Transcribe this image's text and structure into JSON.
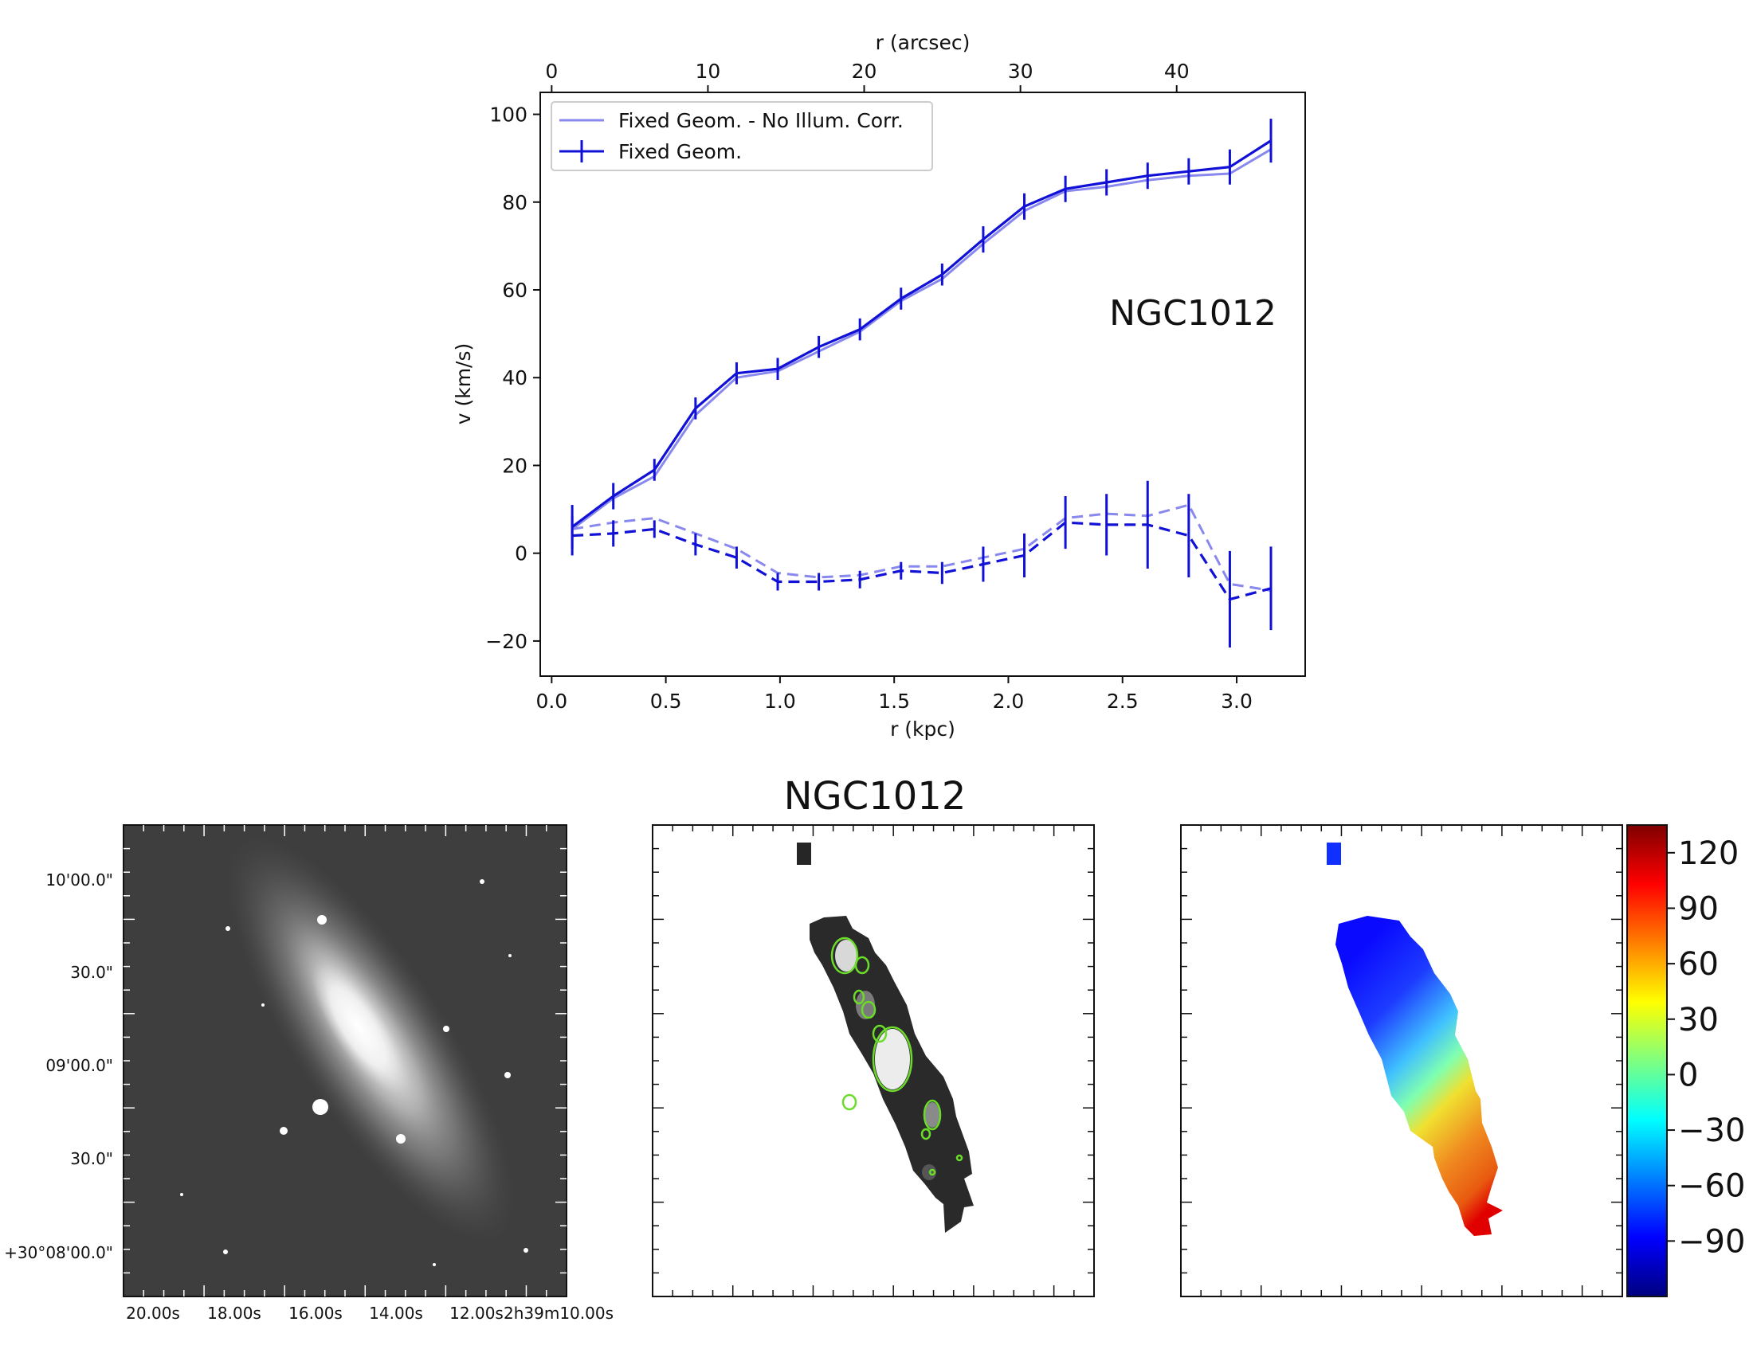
{
  "colors": {
    "fixed_geom": "#1010d6",
    "no_illum": "#8888ee",
    "cbar": [
      "#00007f",
      "#0000ff",
      "#007fff",
      "#00ffff",
      "#7fff7f",
      "#ffff00",
      "#ff7f00",
      "#ff0000",
      "#7f0000"
    ]
  },
  "images": {
    "title": "NGC1012",
    "left_panel": {
      "yticks": [
        "10'00.0\"",
        "30.0\"",
        "09'00.0\"",
        "30.0\"",
        "+30°08'00.0\""
      ],
      "xticks": [
        "20.00s",
        "18.00s",
        "16.00s",
        "14.00s",
        "12.00s",
        "2h39m10.00s"
      ]
    },
    "colorbar": {
      "ticks": [
        "120",
        "90",
        "60",
        "30",
        "0",
        "−30",
        "−60",
        "−90"
      ],
      "range": [
        -120,
        135
      ]
    }
  },
  "chart_data": {
    "type": "line",
    "annotation": "NGC1012",
    "xlabel": "r (kpc)",
    "xlabel_top": "r (arcsec)",
    "ylabel": "v (km/s)",
    "xlim": [
      -0.05,
      3.3
    ],
    "ylim": [
      -28,
      105
    ],
    "xticks": [
      "0.0",
      "0.5",
      "1.0",
      "1.5",
      "2.0",
      "2.5",
      "3.0"
    ],
    "xticks_top": [
      "0",
      "10",
      "20",
      "30",
      "40"
    ],
    "top_axis_scale": 0.06843,
    "yticks": [
      "−20",
      "0",
      "20",
      "40",
      "60",
      "80",
      "100"
    ],
    "legend": {
      "placement": "upper-left",
      "entries": [
        "Fixed Geom. - No Illum. Corr.",
        "Fixed Geom."
      ]
    },
    "x": [
      0.09,
      0.27,
      0.45,
      0.63,
      0.81,
      0.99,
      1.17,
      1.35,
      1.53,
      1.71,
      1.89,
      2.07,
      2.25,
      2.43,
      2.61,
      2.79,
      2.97,
      3.15
    ],
    "series": [
      {
        "name": "Fixed Geom. - No Illum. Corr.",
        "style": "solid-light",
        "values": [
          5.5,
          12.5,
          17.5,
          31.5,
          40,
          41.5,
          46,
          50.5,
          57.5,
          62.5,
          70.5,
          78,
          82.5,
          83.5,
          85,
          86,
          86.5,
          92
        ]
      },
      {
        "name": "Fixed Geom.",
        "style": "solid-errorbar",
        "values": [
          6,
          13,
          19,
          33,
          41,
          42,
          47,
          51,
          58,
          63.5,
          71.5,
          79,
          83,
          84.5,
          86,
          87,
          88,
          94
        ],
        "errors": [
          5,
          3,
          2.5,
          2.5,
          2.5,
          2.5,
          2.5,
          2.5,
          2.5,
          2.5,
          3,
          3,
          3,
          3,
          3,
          3,
          4,
          5
        ]
      },
      {
        "style": "dashed-light",
        "values": [
          5.5,
          7,
          8,
          4.5,
          1,
          -4.5,
          -5.5,
          -5,
          -3,
          -3,
          -1,
          1,
          8,
          9,
          8.5,
          11,
          -7,
          -8.5
        ]
      },
      {
        "style": "dashed-errorbar",
        "values": [
          4,
          4.5,
          5.5,
          2,
          -1,
          -6.5,
          -6.5,
          -6,
          -4,
          -4.5,
          -2.5,
          -0.5,
          7,
          6.5,
          6.5,
          4,
          -10.5,
          -8
        ],
        "errors": [
          4.5,
          3,
          2,
          2.5,
          2.5,
          2,
          2,
          2,
          2,
          2.5,
          4,
          5,
          6,
          7,
          10,
          9.5,
          11,
          9.5
        ]
      }
    ]
  }
}
